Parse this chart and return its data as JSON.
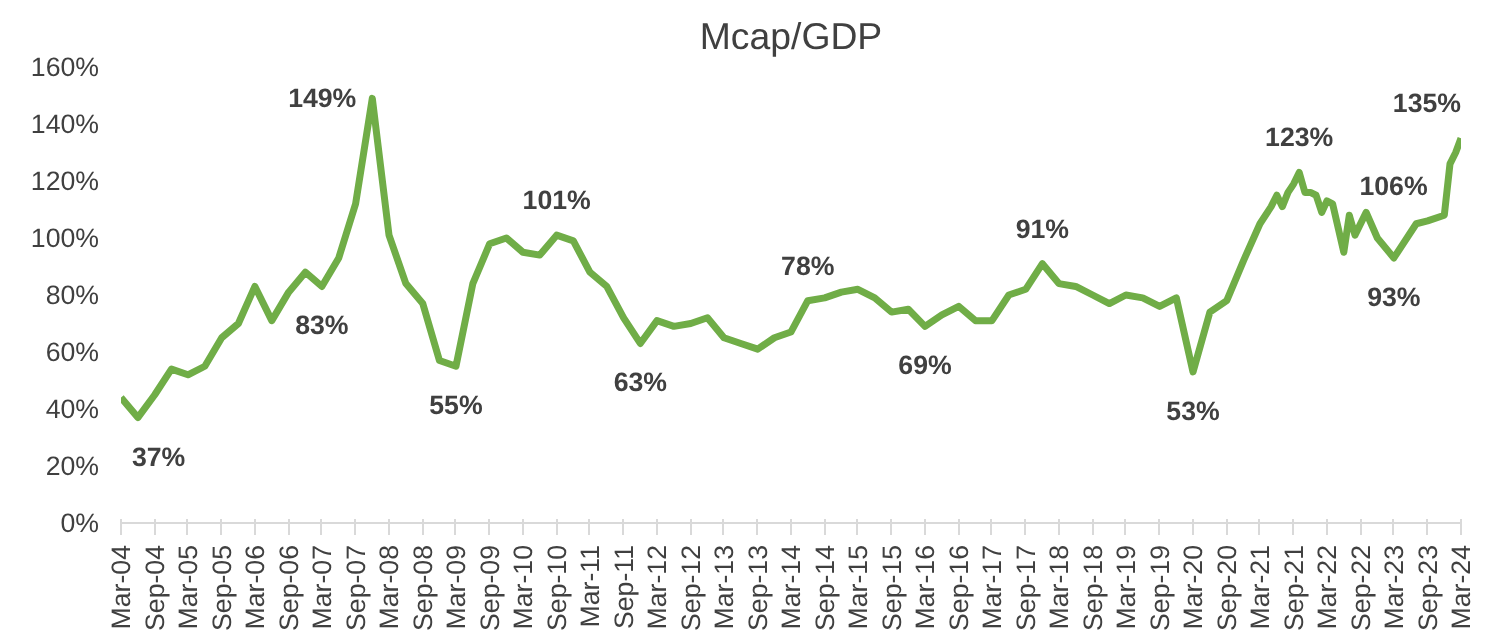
{
  "chart_data": {
    "type": "line",
    "title": "Mcap/GDP",
    "x": [
      "2004-03",
      "2004-06",
      "2004-09",
      "2004-12",
      "2005-03",
      "2005-06",
      "2005-09",
      "2005-12",
      "2006-03",
      "2006-06",
      "2006-09",
      "2006-12",
      "2007-03",
      "2007-06",
      "2007-09",
      "2007-12",
      "2008-03",
      "2008-06",
      "2008-09",
      "2008-12",
      "2009-03",
      "2009-06",
      "2009-09",
      "2009-12",
      "2010-03",
      "2010-06",
      "2010-09",
      "2010-12",
      "2011-03",
      "2011-06",
      "2011-09",
      "2011-12",
      "2012-03",
      "2012-06",
      "2012-09",
      "2012-12",
      "2013-03",
      "2013-06",
      "2013-09",
      "2013-12",
      "2014-03",
      "2014-06",
      "2014-09",
      "2014-12",
      "2015-03",
      "2015-06",
      "2015-09",
      "2015-12",
      "2016-03",
      "2016-06",
      "2016-09",
      "2016-12",
      "2017-03",
      "2017-06",
      "2017-09",
      "2017-12",
      "2018-03",
      "2018-06",
      "2018-09",
      "2018-12",
      "2019-03",
      "2019-06",
      "2019-09",
      "2019-12",
      "2020-03",
      "2020-06",
      "2020-09",
      "2020-12",
      "2021-03",
      "2021-05",
      "2021-06",
      "2021-07",
      "2021-08",
      "2021-09",
      "2021-10",
      "2021-11",
      "2021-12",
      "2022-01",
      "2022-02",
      "2022-03",
      "2022-04",
      "2022-06",
      "2022-07",
      "2022-08",
      "2022-10",
      "2022-12",
      "2023-03",
      "2023-07",
      "2023-09",
      "2023-12",
      "2024-01",
      "2024-02",
      "2024-03"
    ],
    "series": [
      {
        "color": "#70ad47",
        "values": [
          44,
          37,
          45,
          54,
          52,
          55,
          65,
          70,
          83,
          71,
          81,
          88,
          83,
          93,
          112,
          149,
          101,
          84,
          77,
          57,
          55,
          84,
          98,
          100,
          95,
          94,
          101,
          99,
          88,
          83,
          72,
          63,
          71,
          69,
          70,
          72,
          65,
          63,
          61,
          65,
          67,
          78,
          79,
          81,
          82,
          79,
          74,
          75,
          69,
          73,
          76,
          71,
          71,
          80,
          82,
          91,
          84,
          83,
          80,
          77,
          80,
          79,
          76,
          79,
          53,
          74,
          78,
          92,
          105,
          111,
          115,
          111,
          116,
          119,
          123,
          116,
          116,
          115,
          109,
          113,
          112,
          95,
          108,
          101,
          109,
          100,
          93,
          105,
          106,
          108,
          126,
          130,
          135
        ]
      }
    ],
    "ylim": [
      0,
      160
    ],
    "yticks": [
      {
        "value": 0,
        "label": "0%"
      },
      {
        "value": 20,
        "label": "20%"
      },
      {
        "value": 40,
        "label": "40%"
      },
      {
        "value": 60,
        "label": "60%"
      },
      {
        "value": 80,
        "label": "80%"
      },
      {
        "value": 100,
        "label": "100%"
      },
      {
        "value": 120,
        "label": "120%"
      },
      {
        "value": 140,
        "label": "140%"
      },
      {
        "value": 160,
        "label": "160%"
      }
    ],
    "xlim": [
      "2004-03",
      "2024-03"
    ],
    "xticks": [
      {
        "value": "2004-03",
        "label": "Mar-04"
      },
      {
        "value": "2004-09",
        "label": "Sep-04"
      },
      {
        "value": "2005-03",
        "label": "Mar-05"
      },
      {
        "value": "2005-09",
        "label": "Sep-05"
      },
      {
        "value": "2006-03",
        "label": "Mar-06"
      },
      {
        "value": "2006-09",
        "label": "Sep-06"
      },
      {
        "value": "2007-03",
        "label": "Mar-07"
      },
      {
        "value": "2007-09",
        "label": "Sep-07"
      },
      {
        "value": "2008-03",
        "label": "Mar-08"
      },
      {
        "value": "2008-09",
        "label": "Sep-08"
      },
      {
        "value": "2009-03",
        "label": "Mar-09"
      },
      {
        "value": "2009-09",
        "label": "Sep-09"
      },
      {
        "value": "2010-03",
        "label": "Mar-10"
      },
      {
        "value": "2010-09",
        "label": "Sep-10"
      },
      {
        "value": "2011-03",
        "label": "Mar-11"
      },
      {
        "value": "2011-09",
        "label": "Sep-11"
      },
      {
        "value": "2012-03",
        "label": "Mar-12"
      },
      {
        "value": "2012-09",
        "label": "Sep-12"
      },
      {
        "value": "2013-03",
        "label": "Mar-13"
      },
      {
        "value": "2013-09",
        "label": "Sep-13"
      },
      {
        "value": "2014-03",
        "label": "Mar-14"
      },
      {
        "value": "2014-09",
        "label": "Sep-14"
      },
      {
        "value": "2015-03",
        "label": "Mar-15"
      },
      {
        "value": "2015-09",
        "label": "Sep-15"
      },
      {
        "value": "2016-03",
        "label": "Mar-16"
      },
      {
        "value": "2016-09",
        "label": "Sep-16"
      },
      {
        "value": "2017-03",
        "label": "Mar-17"
      },
      {
        "value": "2017-09",
        "label": "Sep-17"
      },
      {
        "value": "2018-03",
        "label": "Mar-18"
      },
      {
        "value": "2018-09",
        "label": "Sep-18"
      },
      {
        "value": "2019-03",
        "label": "Mar-19"
      },
      {
        "value": "2019-09",
        "label": "Sep-19"
      },
      {
        "value": "2020-03",
        "label": "Mar-20"
      },
      {
        "value": "2020-09",
        "label": "Sep-20"
      },
      {
        "value": "2021-03",
        "label": "Mar-21"
      },
      {
        "value": "2021-09",
        "label": "Sep-21"
      },
      {
        "value": "2022-03",
        "label": "Mar-22"
      },
      {
        "value": "2022-09",
        "label": "Sep-22"
      },
      {
        "value": "2023-03",
        "label": "Mar-23"
      },
      {
        "value": "2023-09",
        "label": "Sep-23"
      },
      {
        "value": "2024-03",
        "label": "Mar-24"
      }
    ],
    "annotations": [
      {
        "text": "37%",
        "x": "2004-06",
        "y": 37
      },
      {
        "text": "83%",
        "x": "2007-03",
        "y": 83
      },
      {
        "text": "149%",
        "x": "2007-12",
        "y": 149
      },
      {
        "text": "55%",
        "x": "2009-03",
        "y": 55
      },
      {
        "text": "101%",
        "x": "2010-09",
        "y": 101
      },
      {
        "text": "63%",
        "x": "2011-12",
        "y": 63
      },
      {
        "text": "78%",
        "x": "2014-06",
        "y": 78
      },
      {
        "text": "69%",
        "x": "2016-03",
        "y": 69
      },
      {
        "text": "91%",
        "x": "2017-12",
        "y": 91
      },
      {
        "text": "53%",
        "x": "2020-03",
        "y": 53
      },
      {
        "text": "123%",
        "x": "2021-10",
        "y": 123
      },
      {
        "text": "93%",
        "x": "2023-03",
        "y": 93
      },
      {
        "text": "106%",
        "x": "2023-09",
        "y": 106
      },
      {
        "text": "135%",
        "x": "2024-03",
        "y": 135
      }
    ]
  }
}
